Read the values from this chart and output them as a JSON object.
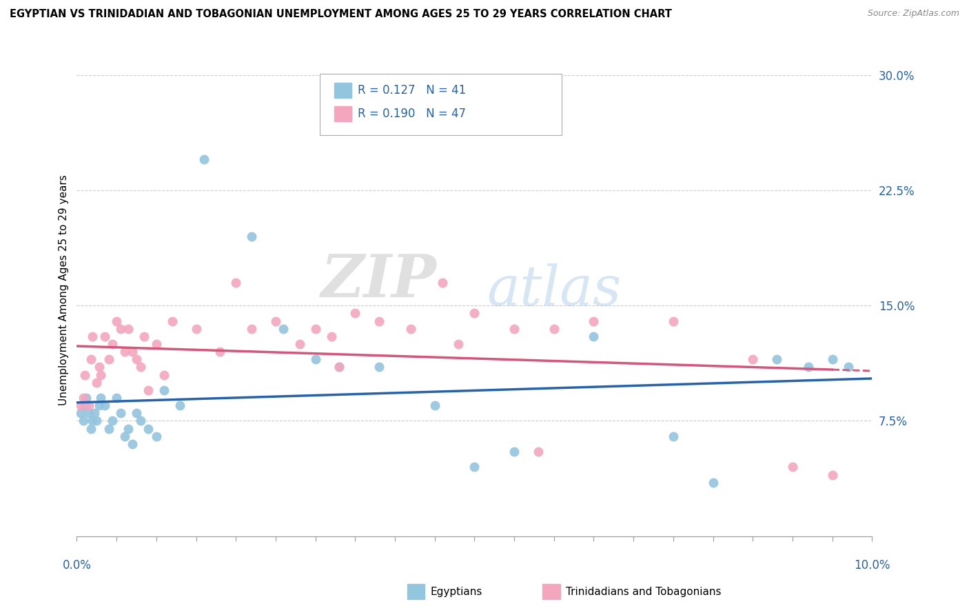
{
  "title": "EGYPTIAN VS TRINIDADIAN AND TOBAGONIAN UNEMPLOYMENT AMONG AGES 25 TO 29 YEARS CORRELATION CHART",
  "source": "Source: ZipAtlas.com",
  "ylabel": "Unemployment Among Ages 25 to 29 years",
  "xlim": [
    0.0,
    10.0
  ],
  "ylim": [
    0.0,
    32.0
  ],
  "ytick_vals": [
    0.0,
    7.5,
    15.0,
    22.5,
    30.0
  ],
  "ytick_labels": [
    "",
    "7.5%",
    "15.0%",
    "22.5%",
    "30.0%"
  ],
  "legend_r1": "R = 0.127",
  "legend_n1": "N = 41",
  "legend_r2": "R = 0.190",
  "legend_n2": "N = 47",
  "legend_label1": "Egyptians",
  "legend_label2": "Trinidadians and Tobagonians",
  "blue_color": "#92c5de",
  "pink_color": "#f4a6be",
  "trend_blue": "#2563b0",
  "trend_pink": "#d9547a",
  "watermark_zip": "ZIP",
  "watermark_atlas": "atlas",
  "eg_x": [
    0.05,
    0.08,
    0.1,
    0.12,
    0.15,
    0.18,
    0.2,
    0.22,
    0.25,
    0.28,
    0.3,
    0.35,
    0.4,
    0.45,
    0.5,
    0.55,
    0.6,
    0.65,
    0.7,
    0.75,
    0.8,
    0.9,
    1.0,
    1.1,
    1.3,
    1.6,
    2.2,
    2.6,
    3.0,
    3.3,
    3.8,
    4.5,
    5.0,
    5.5,
    6.5,
    7.5,
    8.0,
    8.8,
    9.2,
    9.5,
    9.7
  ],
  "eg_y": [
    8.0,
    7.5,
    8.5,
    9.0,
    8.0,
    7.0,
    7.5,
    8.0,
    7.5,
    8.5,
    9.0,
    8.5,
    7.0,
    7.5,
    9.0,
    8.0,
    6.5,
    7.0,
    6.0,
    8.0,
    7.5,
    7.0,
    6.5,
    9.5,
    8.5,
    24.5,
    19.5,
    13.5,
    11.5,
    11.0,
    11.0,
    8.5,
    4.5,
    5.5,
    13.0,
    6.5,
    3.5,
    11.5,
    11.0,
    11.5,
    11.0
  ],
  "tr_x": [
    0.05,
    0.08,
    0.1,
    0.15,
    0.18,
    0.2,
    0.25,
    0.28,
    0.3,
    0.35,
    0.4,
    0.45,
    0.5,
    0.55,
    0.6,
    0.65,
    0.7,
    0.75,
    0.8,
    0.85,
    0.9,
    1.0,
    1.1,
    1.2,
    1.5,
    1.8,
    2.0,
    2.2,
    2.5,
    2.8,
    3.0,
    3.2,
    3.5,
    3.8,
    4.2,
    4.6,
    5.0,
    5.5,
    6.5,
    7.5,
    8.5,
    9.0,
    9.5,
    4.8,
    5.8,
    6.0,
    3.3
  ],
  "tr_y": [
    8.5,
    9.0,
    10.5,
    8.5,
    11.5,
    13.0,
    10.0,
    11.0,
    10.5,
    13.0,
    11.5,
    12.5,
    14.0,
    13.5,
    12.0,
    13.5,
    12.0,
    11.5,
    11.0,
    13.0,
    9.5,
    12.5,
    10.5,
    14.0,
    13.5,
    12.0,
    16.5,
    13.5,
    14.0,
    12.5,
    13.5,
    13.0,
    14.5,
    14.0,
    13.5,
    16.5,
    14.5,
    13.5,
    14.0,
    14.0,
    11.5,
    4.5,
    4.0,
    12.5,
    5.5,
    13.5,
    11.0
  ]
}
